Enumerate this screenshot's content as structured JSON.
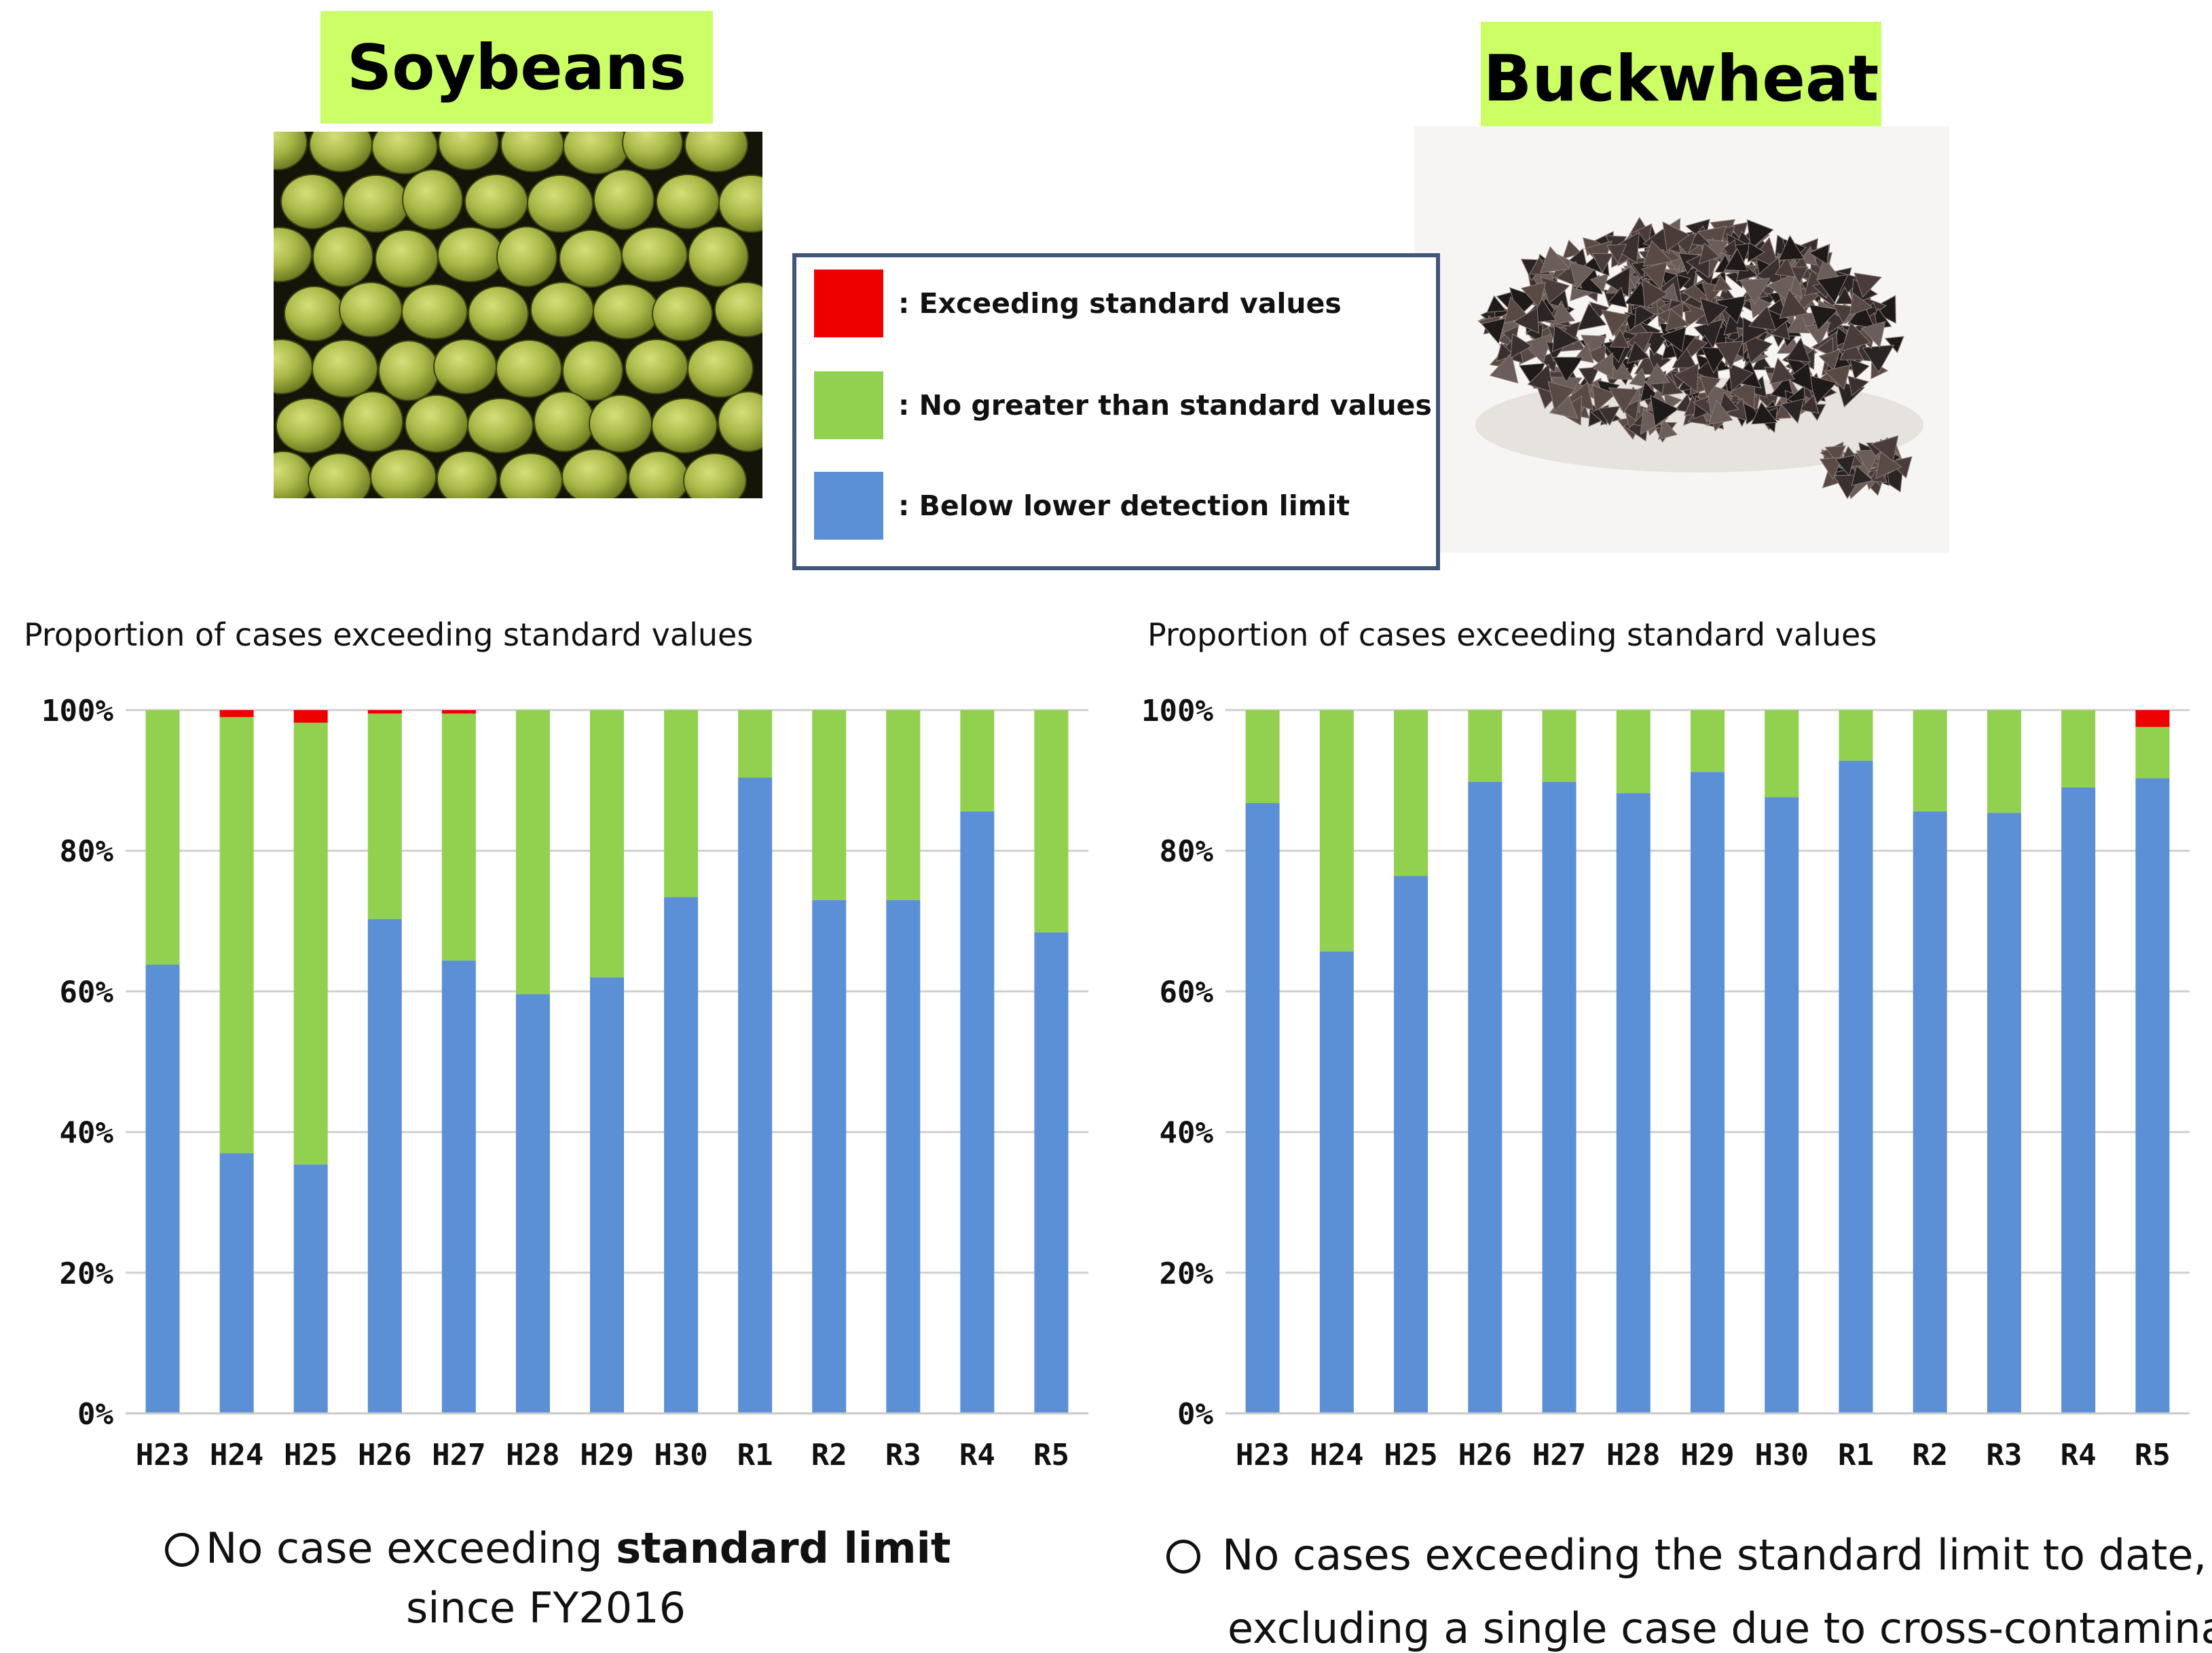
{
  "header": {
    "soy_label": "Soybeans",
    "buck_label": "Buckwheat"
  },
  "legend": {
    "items": [
      {
        "label": ": Exceeding standard values",
        "color": "#ee0000"
      },
      {
        "label": ": No greater than standard values",
        "color": "#92d050"
      },
      {
        "label": ": Below lower detection limit",
        "color": "#5b8fd6"
      }
    ]
  },
  "notes": {
    "soy_line1_a": "No case exceeding ",
    "soy_line1_b": "standard limit",
    "soy_line2": "since FY2016",
    "buck_line1": "No cases exceeding the standard limit to date,",
    "buck_line2": "excluding a single case due to cross-contamination"
  },
  "chart_data": [
    {
      "type": "bar",
      "stacked": true,
      "title": "Proportion of cases exceeding standard values",
      "categories": [
        "H23",
        "H24",
        "H25",
        "H26",
        "H27",
        "H28",
        "H29",
        "H30",
        "R1",
        "R2",
        "R3",
        "R4",
        "R5"
      ],
      "series": [
        {
          "name": ": Below lower detection limit",
          "color": "#5b8fd6",
          "values": [
            63.8,
            37.0,
            35.4,
            70.3,
            64.4,
            59.6,
            62.0,
            73.4,
            90.4,
            73.0,
            73.0,
            85.6,
            68.4
          ]
        },
        {
          "name": ": No greater than standard values",
          "color": "#92d050",
          "values": [
            36.2,
            62.0,
            62.8,
            29.2,
            35.1,
            40.4,
            38.0,
            26.6,
            9.6,
            27.0,
            27.0,
            14.4,
            31.6
          ]
        },
        {
          "name": ": Exceeding standard values",
          "color": "#ee0000",
          "values": [
            0,
            1.0,
            1.8,
            0.5,
            0.5,
            0,
            0,
            0,
            0,
            0,
            0,
            0,
            0
          ]
        }
      ],
      "yticks": [
        "0%",
        "20%",
        "40%",
        "60%",
        "80%",
        "100%"
      ],
      "ylim": [
        0,
        100
      ],
      "grid": true
    },
    {
      "type": "bar",
      "stacked": true,
      "title": "Proportion of cases exceeding standard values",
      "categories": [
        "H23",
        "H24",
        "H25",
        "H26",
        "H27",
        "H28",
        "H29",
        "H30",
        "R1",
        "R2",
        "R3",
        "R4",
        "R5"
      ],
      "series": [
        {
          "name": ": Below lower detection limit",
          "color": "#5b8fd6",
          "values": [
            86.8,
            65.7,
            76.4,
            89.8,
            89.8,
            88.2,
            91.2,
            87.6,
            92.8,
            85.6,
            85.4,
            89.0,
            90.3
          ]
        },
        {
          "name": ": No greater than standard values",
          "color": "#92d050",
          "values": [
            13.2,
            34.3,
            23.6,
            10.2,
            10.2,
            11.8,
            8.8,
            12.4,
            7.2,
            14.4,
            14.6,
            11.0,
            7.3
          ]
        },
        {
          "name": ": Exceeding standard values",
          "color": "#ee0000",
          "values": [
            0,
            0,
            0,
            0,
            0,
            0,
            0,
            0,
            0,
            0,
            0,
            0,
            2.4
          ]
        }
      ],
      "yticks": [
        "0%",
        "20%",
        "40%",
        "60%",
        "80%",
        "100%"
      ],
      "ylim": [
        0,
        100
      ],
      "grid": true
    }
  ]
}
